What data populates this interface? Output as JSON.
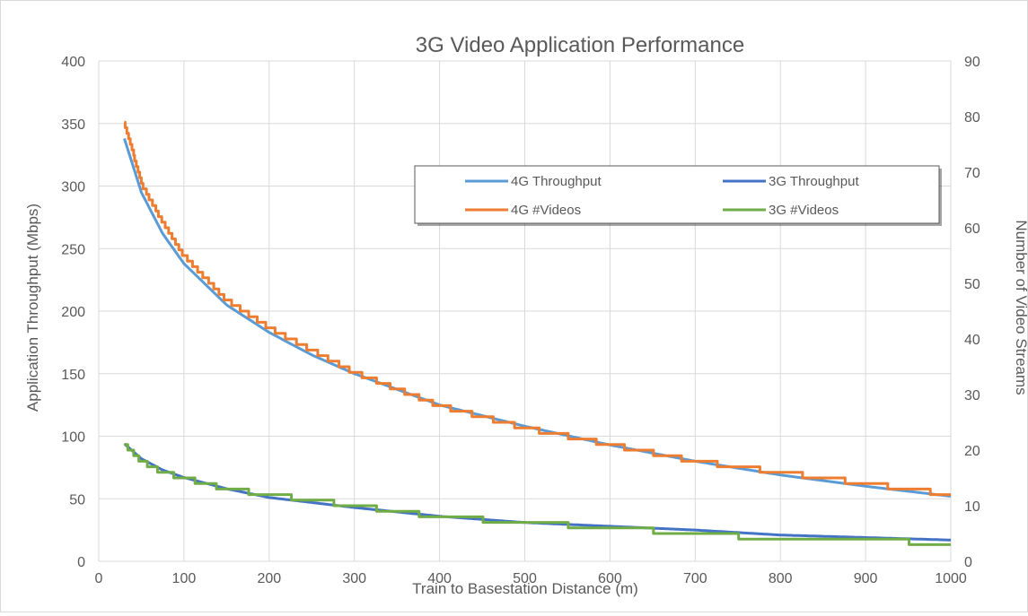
{
  "chart_data": {
    "type": "line",
    "title": "3G Video Application Performance",
    "xlabel": "Train to Basestation Distance (m)",
    "ylabel": "Application Throughput (Mbps)",
    "y2label": "Number of Video Streams",
    "xlim": [
      0,
      1000
    ],
    "ylim": [
      0,
      400
    ],
    "y2lim": [
      0,
      90
    ],
    "xticks": [
      "0",
      "100",
      "200",
      "300",
      "400",
      "500",
      "600",
      "700",
      "800",
      "900",
      "1000"
    ],
    "yticks": [
      "0",
      "50",
      "100",
      "150",
      "200",
      "250",
      "300",
      "350",
      "400"
    ],
    "y2ticks": [
      "0",
      "10",
      "20",
      "30",
      "40",
      "50",
      "60",
      "70",
      "80",
      "90"
    ],
    "grid": true,
    "legend_position": "center-right",
    "series": [
      {
        "name": "4G Throughput",
        "axis": "left",
        "color": "#5b9bd5",
        "step": false,
        "x": [
          30,
          50,
          75,
          100,
          150,
          200,
          250,
          300,
          400,
          500,
          600,
          700,
          800,
          900,
          1000
        ],
        "y": [
          338,
          295,
          262,
          238,
          205,
          183,
          165,
          150,
          125,
          108,
          93,
          80,
          69,
          60,
          52
        ]
      },
      {
        "name": "3G Throughput",
        "axis": "left",
        "color": "#4472c4",
        "step": false,
        "x": [
          30,
          50,
          75,
          100,
          150,
          200,
          250,
          300,
          400,
          500,
          600,
          700,
          800,
          900,
          1000
        ],
        "y": [
          94,
          82,
          73,
          67,
          58,
          51,
          47,
          43,
          36,
          31,
          28,
          25,
          21,
          19,
          17
        ]
      },
      {
        "name": "4G #Videos",
        "axis": "right",
        "color": "#ed7d31",
        "step": true,
        "x": [
          30,
          50,
          75,
          100,
          150,
          200,
          250,
          300,
          400,
          500,
          600,
          700,
          800,
          900,
          1000
        ],
        "y": [
          79,
          68,
          61,
          55,
          47,
          42,
          38,
          34,
          28,
          24,
          21,
          18,
          16,
          14,
          12
        ]
      },
      {
        "name": "3G #Videos",
        "axis": "right",
        "color": "#70ad47",
        "step": true,
        "x": [
          30,
          50,
          75,
          100,
          150,
          200,
          250,
          300,
          400,
          500,
          600,
          700,
          800,
          900,
          1000
        ],
        "y": [
          21,
          18,
          16,
          15,
          13,
          12,
          11,
          10,
          8,
          7,
          6,
          5,
          4,
          4,
          3
        ]
      }
    ]
  }
}
